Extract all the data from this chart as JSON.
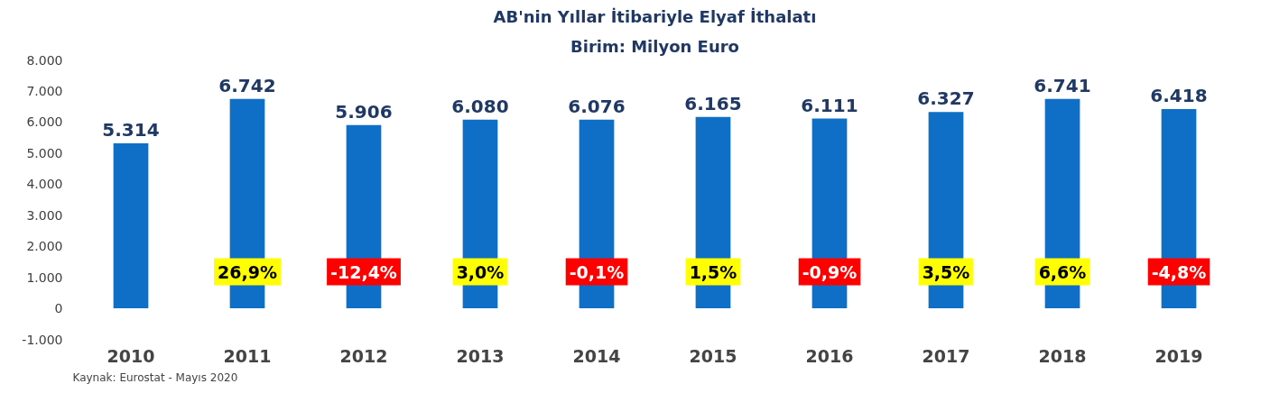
{
  "chart_data": {
    "type": "bar",
    "title": "AB'nin Yıllar İtibariyle Elyaf İthalatı",
    "subtitle": "Birim: Milyon Euro",
    "categories": [
      "2010",
      "2011",
      "2012",
      "2013",
      "2014",
      "2015",
      "2016",
      "2017",
      "2018",
      "2019"
    ],
    "values": [
      5314,
      6742,
      5906,
      6080,
      6076,
      6165,
      6111,
      6327,
      6741,
      6418
    ],
    "value_labels": [
      "5.314",
      "6.742",
      "5.906",
      "6.080",
      "6.076",
      "6.165",
      "6.111",
      "6.327",
      "6.741",
      "6.418"
    ],
    "color": "#0f6ec6",
    "ylim": [
      -1000,
      8000
    ],
    "yticks": [
      {
        "value": -1000,
        "label": "-1.000"
      },
      0,
      {
        "value": 1000,
        "label": "1.000"
      },
      {
        "value": 2000,
        "label": "2.000"
      },
      {
        "value": 3000,
        "label": "3.000"
      },
      {
        "value": 4000,
        "label": "4.000"
      },
      {
        "value": 5000,
        "label": "5.000"
      },
      {
        "value": 6000,
        "label": "6.000"
      },
      {
        "value": 7000,
        "label": "7.000"
      },
      {
        "value": 8000,
        "label": "8.000"
      }
    ],
    "grid": false,
    "annotations": [
      "26,9%",
      "-12,4%",
      "3,0%",
      "-0,1%",
      "1,5%",
      "-0,9%",
      "3,5%",
      "6,6%",
      "-4,8%",
      "Kaynak: Eurostat - Mayıs 2020"
    ]
  }
}
